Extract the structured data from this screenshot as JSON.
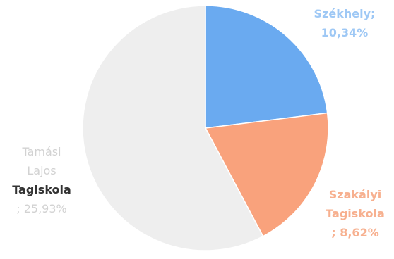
{
  "chart_data": {
    "type": "pie",
    "title": "",
    "slices": [
      {
        "label": "Székhely",
        "value_label": "10,34%",
        "share": 0.2453,
        "color": "#6aaaf0"
      },
      {
        "label": "Szakályi Tagiskola",
        "value_label": "8,62%",
        "share": 0.2045,
        "color": "#f9a27c"
      },
      {
        "label": "Tamási Lajos Tagiskola",
        "value_label": "25,93%",
        "share": 0.6152,
        "color": "#eeeeee"
      }
    ],
    "start_angle_deg": 0,
    "direction": "clockwise"
  },
  "labels": {
    "szekhely": {
      "line1": "Székhely;",
      "line2": "10,34%"
    },
    "szakalyi": {
      "line1": "Szakályi",
      "line2": "Tagiskola",
      "line3": "; 8,62%"
    },
    "tamasi": {
      "line1": "Tamási",
      "line2": "Lajos",
      "line3": "Tagiskola",
      "line4": "; 25,93%"
    }
  }
}
